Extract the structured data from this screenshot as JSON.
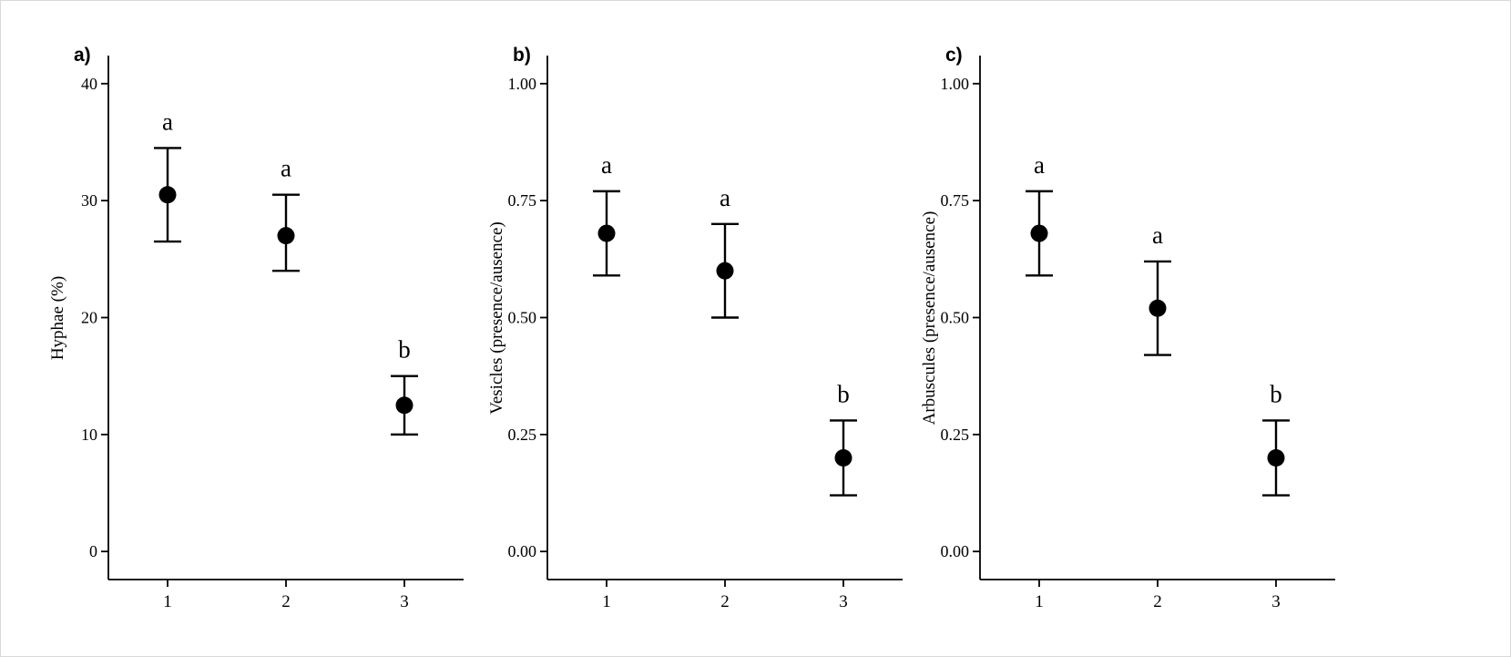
{
  "figure": {
    "background": "#ffffff",
    "ink_color": "#000000",
    "border_color": "#d9d9d9"
  },
  "chart_data": [
    {
      "type": "scatter",
      "panel_label": "a)",
      "title": "",
      "xlabel": "",
      "ylabel": "Hyphae (%)",
      "categories": [
        "1",
        "2",
        "3"
      ],
      "ylim": [
        0,
        40
      ],
      "yticks": [
        0,
        10,
        20,
        30,
        40
      ],
      "ytick_labels": [
        "0",
        "10",
        "20",
        "30",
        "40"
      ],
      "grid": false,
      "legend": false,
      "series": [
        {
          "name": "mean",
          "values": [
            30.5,
            27,
            12.5
          ]
        }
      ],
      "error_low": [
        26.5,
        24,
        10
      ],
      "error_high": [
        34.5,
        30.5,
        15
      ],
      "sig_letters": [
        "a",
        "a",
        "b"
      ]
    },
    {
      "type": "scatter",
      "panel_label": "b)",
      "title": "",
      "xlabel": "",
      "ylabel": "Vesicles (presence/ausence)",
      "categories": [
        "1",
        "2",
        "3"
      ],
      "ylim": [
        0,
        1
      ],
      "yticks": [
        0,
        0.25,
        0.5,
        0.75,
        1
      ],
      "ytick_labels": [
        "0.00",
        "0.25",
        "0.50",
        "0.75",
        "1.00"
      ],
      "grid": false,
      "legend": false,
      "series": [
        {
          "name": "mean",
          "values": [
            0.68,
            0.6,
            0.2
          ]
        }
      ],
      "error_low": [
        0.59,
        0.5,
        0.12
      ],
      "error_high": [
        0.77,
        0.7,
        0.28
      ],
      "sig_letters": [
        "a",
        "a",
        "b"
      ]
    },
    {
      "type": "scatter",
      "panel_label": "c)",
      "title": "",
      "xlabel": "",
      "ylabel": "Arbuscules (presence/ausence)",
      "categories": [
        "1",
        "2",
        "3"
      ],
      "ylim": [
        0,
        1
      ],
      "yticks": [
        0,
        0.25,
        0.5,
        0.75,
        1
      ],
      "ytick_labels": [
        "0.00",
        "0.25",
        "0.50",
        "0.75",
        "1.00"
      ],
      "grid": false,
      "legend": false,
      "series": [
        {
          "name": "mean",
          "values": [
            0.68,
            0.52,
            0.2
          ]
        }
      ],
      "error_low": [
        0.59,
        0.42,
        0.12
      ],
      "error_high": [
        0.77,
        0.62,
        0.28
      ],
      "sig_letters": [
        "a",
        "a",
        "b"
      ]
    }
  ]
}
